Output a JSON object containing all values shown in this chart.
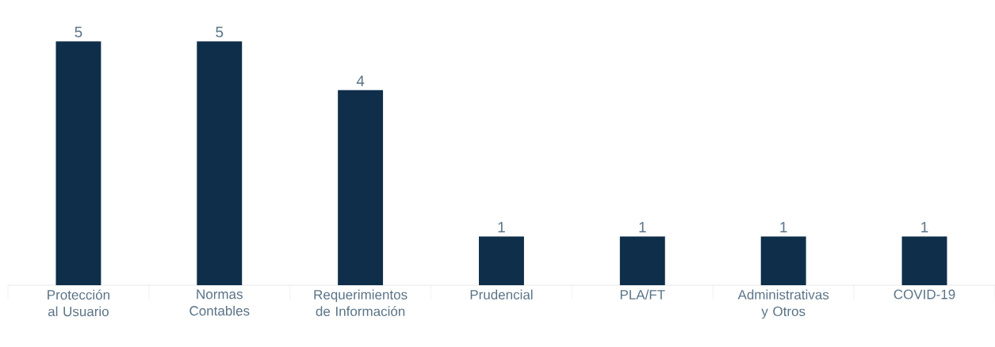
{
  "chart_data": {
    "type": "bar",
    "categories": [
      "Protección al Usuario",
      "Normas Contables",
      "Requerimientos de Información",
      "Prudencial",
      "PLA/FT",
      "Administrativas y Otros",
      "COVID-19"
    ],
    "values": [
      5,
      5,
      4,
      1,
      1,
      1,
      1
    ],
    "color": "#0f2e4a",
    "data_labels": true
  }
}
